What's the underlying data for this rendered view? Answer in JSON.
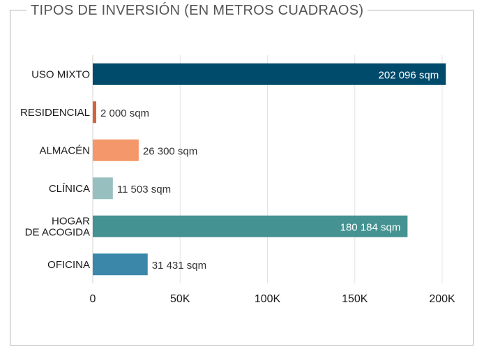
{
  "chart_data": {
    "type": "bar",
    "orientation": "horizontal",
    "title": "TIPOS DE INVERSIÓN (EN METROS CUADRAOS)",
    "categories": [
      [
        "USO MIXTO"
      ],
      [
        "RESIDENCIAL"
      ],
      [
        "ALMACÉN"
      ],
      [
        "CLÍNICA"
      ],
      [
        "HOGAR",
        "DE ACOGIDA"
      ],
      [
        "OFICINA"
      ]
    ],
    "values": [
      202096,
      2000,
      26300,
      11503,
      180184,
      31431
    ],
    "data_labels": [
      "202 096 sqm",
      "2 000 sqm",
      "26 300 sqm",
      "11 503 sqm",
      "180 184 sqm",
      "31 431 sqm"
    ],
    "colors": [
      "#004a6b",
      "#d4643a",
      "#f4976a",
      "#97bfbf",
      "#449292",
      "#3a87a9"
    ],
    "label_inside": [
      true,
      false,
      false,
      false,
      true,
      false
    ],
    "xlim": [
      0,
      200000
    ],
    "xticks": [
      0,
      50000,
      100000,
      150000,
      200000
    ],
    "xtick_labels": [
      "0",
      "50K",
      "100K",
      "150K",
      "200K"
    ],
    "grid": true,
    "xlabel": "",
    "ylabel": ""
  }
}
